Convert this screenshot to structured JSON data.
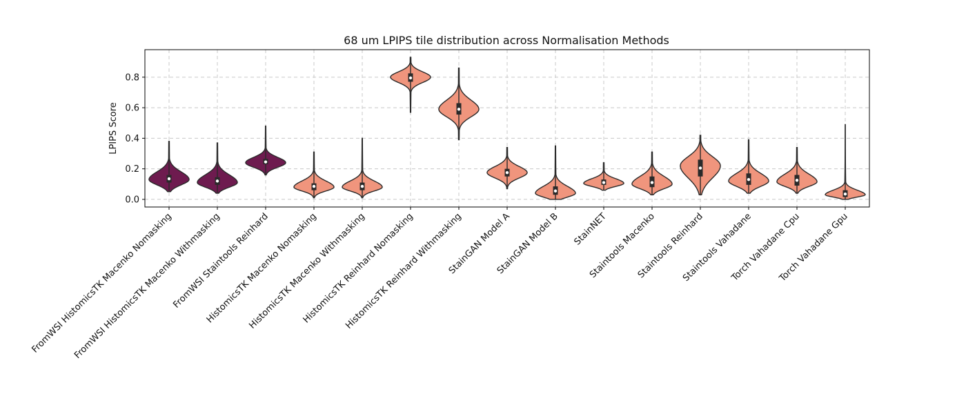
{
  "chart_data": {
    "type": "violin",
    "title": "68 um LPIPS tile distribution across Normalisation Methods",
    "xlabel": "",
    "ylabel": "LPIPS Score",
    "ylim": [
      -0.05,
      0.98
    ],
    "yticks": [
      0.0,
      0.2,
      0.4,
      0.6,
      0.8
    ],
    "ytick_labels": [
      "0.0",
      "0.2",
      "0.4",
      "0.6",
      "0.8"
    ],
    "grid": true,
    "colors": {
      "group_a": "#6e1b4f",
      "group_b": "#f0957d",
      "outline": "#2a2a2a",
      "box": "#2a2a2a",
      "median": "#ffffff"
    },
    "categories": [
      "FromWSI HistomicsTK Macenko Nomasking",
      "FromWSI HistomicsTK Macenko Withmasking",
      "FromWSI Staintools Reinhard",
      "HistomicsTK Macenko Nomasking",
      "HistomicsTK Macenko Withmasking",
      "HistomicsTK Reinhard Nomasking",
      "HistomicsTK Reinhard Withmasking",
      "StainGAN Model A",
      "StainGAN Model B",
      "StainNET",
      "Staintools Macenko",
      "Staintools Reinhard",
      "Staintools Vahadane",
      "Torch Vahadane Cpu",
      "Torch Vahadane Gpu"
    ],
    "violins": [
      {
        "group": "group_a",
        "min": 0.05,
        "max": 0.38,
        "q1": 0.11,
        "median": 0.135,
        "q3": 0.16,
        "mode": 0.13,
        "halfwidth": 0.83,
        "spread_low": 0.035,
        "spread_high": 0.05
      },
      {
        "group": "group_a",
        "min": 0.04,
        "max": 0.37,
        "q1": 0.095,
        "median": 0.12,
        "q3": 0.145,
        "mode": 0.11,
        "halfwidth": 0.83,
        "spread_low": 0.03,
        "spread_high": 0.05
      },
      {
        "group": "group_a",
        "min": 0.16,
        "max": 0.48,
        "q1": 0.23,
        "median": 0.245,
        "q3": 0.265,
        "mode": 0.24,
        "halfwidth": 0.83,
        "spread_low": 0.03,
        "spread_high": 0.035
      },
      {
        "group": "group_b",
        "min": 0.01,
        "max": 0.31,
        "q1": 0.06,
        "median": 0.085,
        "q3": 0.105,
        "mode": 0.08,
        "halfwidth": 0.83,
        "spread_low": 0.025,
        "spread_high": 0.04
      },
      {
        "group": "group_b",
        "min": 0.01,
        "max": 0.4,
        "q1": 0.06,
        "median": 0.085,
        "q3": 0.11,
        "mode": 0.08,
        "halfwidth": 0.83,
        "spread_low": 0.025,
        "spread_high": 0.04
      },
      {
        "group": "group_b",
        "min": 0.57,
        "max": 0.93,
        "q1": 0.77,
        "median": 0.795,
        "q3": 0.825,
        "mode": 0.8,
        "halfwidth": 0.83,
        "spread_low": 0.035,
        "spread_high": 0.035
      },
      {
        "group": "group_b",
        "min": 0.39,
        "max": 0.86,
        "q1": 0.555,
        "median": 0.59,
        "q3": 0.63,
        "mode": 0.59,
        "halfwidth": 0.83,
        "spread_low": 0.05,
        "spread_high": 0.06
      },
      {
        "group": "group_b",
        "min": 0.07,
        "max": 0.34,
        "q1": 0.15,
        "median": 0.175,
        "q3": 0.2,
        "mode": 0.175,
        "halfwidth": 0.83,
        "spread_low": 0.035,
        "spread_high": 0.04
      },
      {
        "group": "group_b",
        "min": 0.0,
        "max": 0.35,
        "q1": 0.03,
        "median": 0.055,
        "q3": 0.085,
        "mode": 0.04,
        "halfwidth": 0.83,
        "spread_low": 0.025,
        "spread_high": 0.045
      },
      {
        "group": "group_b",
        "min": 0.06,
        "max": 0.24,
        "q1": 0.095,
        "median": 0.11,
        "q3": 0.13,
        "mode": 0.105,
        "halfwidth": 0.83,
        "spread_low": 0.02,
        "spread_high": 0.03
      },
      {
        "group": "group_b",
        "min": 0.03,
        "max": 0.31,
        "q1": 0.08,
        "median": 0.11,
        "q3": 0.15,
        "mode": 0.1,
        "halfwidth": 0.83,
        "spread_low": 0.03,
        "spread_high": 0.05
      },
      {
        "group": "group_b",
        "min": 0.03,
        "max": 0.42,
        "q1": 0.15,
        "median": 0.205,
        "q3": 0.26,
        "mode": 0.22,
        "halfwidth": 0.83,
        "spread_low": 0.08,
        "spread_high": 0.06
      },
      {
        "group": "group_b",
        "min": 0.04,
        "max": 0.39,
        "q1": 0.095,
        "median": 0.13,
        "q3": 0.17,
        "mode": 0.12,
        "halfwidth": 0.83,
        "spread_low": 0.035,
        "spread_high": 0.05
      },
      {
        "group": "group_b",
        "min": 0.04,
        "max": 0.34,
        "q1": 0.09,
        "median": 0.125,
        "q3": 0.16,
        "mode": 0.115,
        "halfwidth": 0.83,
        "spread_low": 0.03,
        "spread_high": 0.05
      },
      {
        "group": "group_b",
        "min": 0.0,
        "max": 0.49,
        "q1": 0.015,
        "median": 0.035,
        "q3": 0.06,
        "mode": 0.03,
        "halfwidth": 0.83,
        "spread_low": 0.015,
        "spread_high": 0.03
      }
    ]
  }
}
